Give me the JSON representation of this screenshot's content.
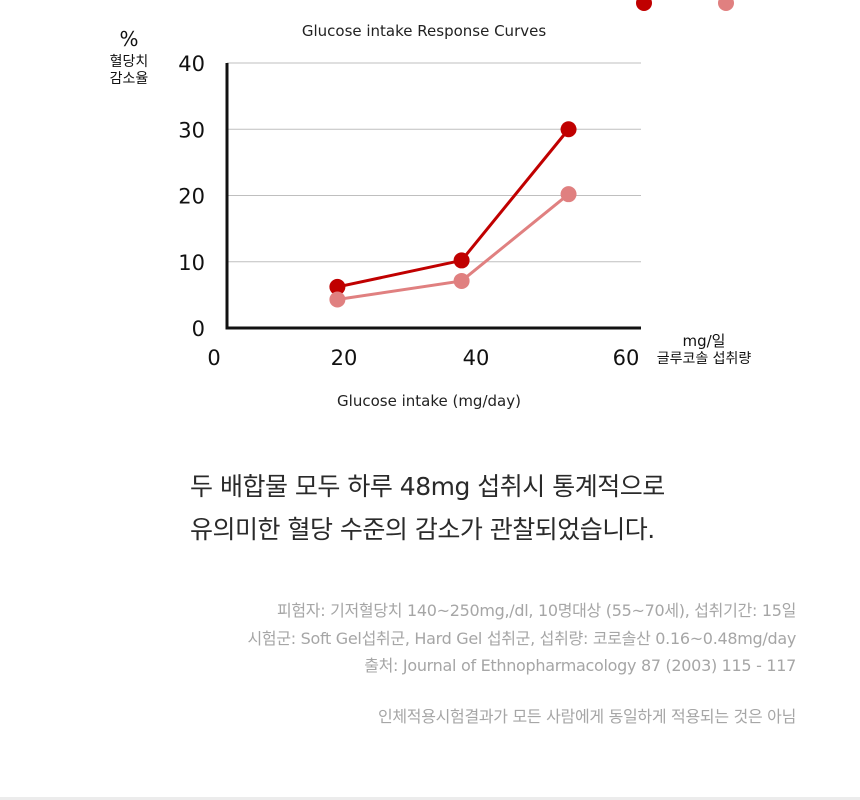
{
  "chart_data": {
    "type": "line",
    "title": "Glucose intake Response Curves",
    "xlabel": "Glucose intake (mg/day)",
    "x_unit_label": [
      "mg/일",
      "글루코솔 섭취량"
    ],
    "y_unit_label": [
      "%",
      "혈당치",
      "감소율"
    ],
    "xlim": [
      0,
      60
    ],
    "ylim": [
      0,
      40
    ],
    "xticks": [
      0,
      20,
      40,
      60
    ],
    "yticks": [
      0,
      10,
      20,
      30,
      40
    ],
    "grid": "horizontal",
    "series": [
      {
        "color": "#c00000",
        "x": [
          16,
          34,
          49.5
        ],
        "y": [
          6.2,
          10.2,
          30
        ]
      },
      {
        "color": "#e08080",
        "x": [
          16,
          34,
          49.5
        ],
        "y": [
          4.3,
          7.1,
          20.2
        ]
      }
    ],
    "legend_markers": [
      "#c00000",
      "#e08080"
    ]
  },
  "headline": {
    "line1": "두 배합물 모두 하루 48mg  섭취시 통계적으로",
    "line2": "유의미한 혈당 수준의 감소가 관찰되었습니다."
  },
  "notes": {
    "line1": "피험자: 기저혈당치 140~250mg,/dl, 10명대상 (55~70세), 섭취기간: 15일",
    "line2": "시험군: Soft Gel섭취군, Hard Gel 섭취군, 섭취량: 코로솔산 0.16~0.48mg/day",
    "line3": "출처:  Journal of Ethnopharmacology 87 (2003) 115 - 117"
  },
  "disclaimer": "인체적용시험결과가 모든 사람에게 동일하게 적용되는 것은 아님"
}
